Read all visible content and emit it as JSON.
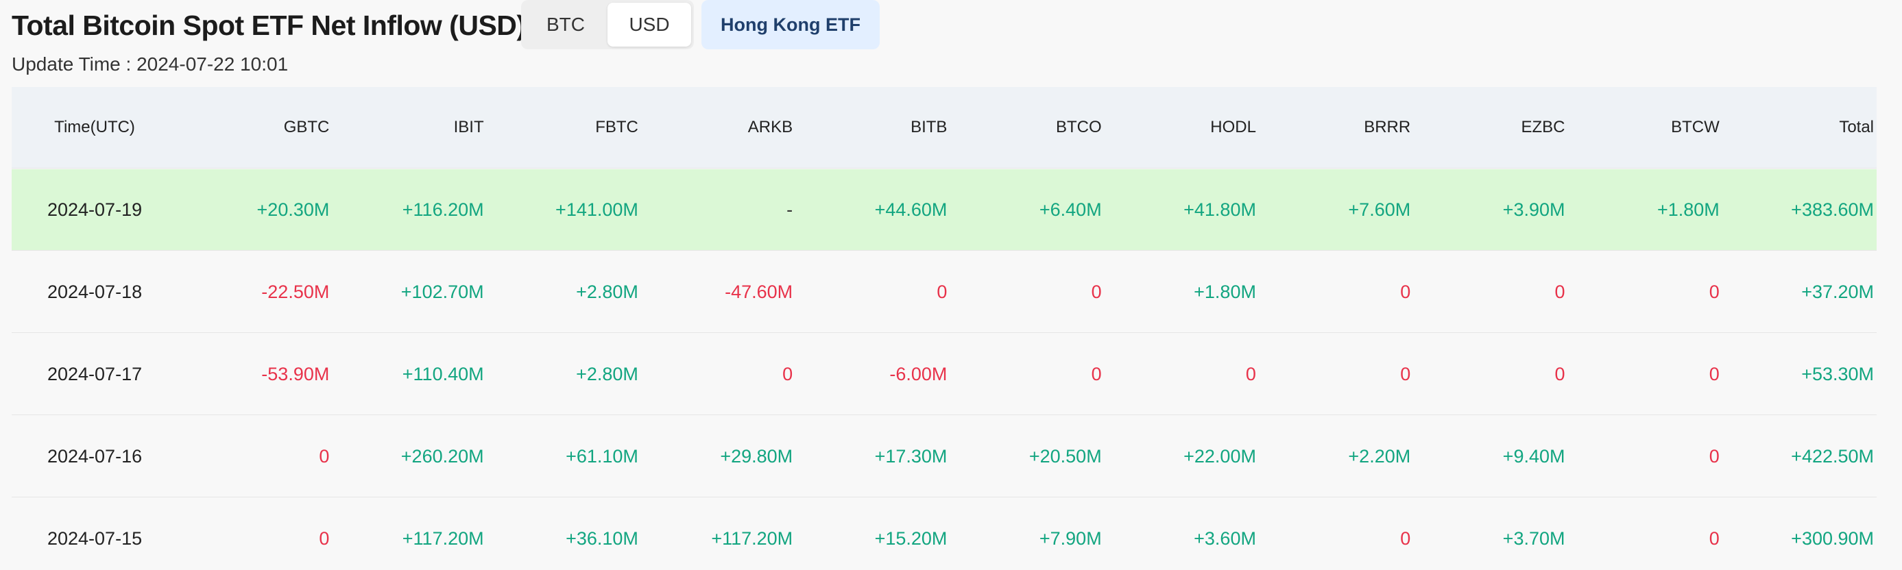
{
  "title": "Total Bitcoin Spot ETF Net Inflow (USD)",
  "unit_toggle": {
    "btc_label": "BTC",
    "usd_label": "USD",
    "selected": "USD"
  },
  "hk_button_label": "Hong Kong ETF",
  "update_time": "Update Time : 2024-07-22 10:01",
  "colors": {
    "positive": "#12a580",
    "negative": "#e8324a",
    "highlight_row": "#dbf8d6",
    "header_row": "#eef2f6",
    "hk_button_bg": "#e3efff"
  },
  "table": {
    "headers": [
      "Time(UTC)",
      "GBTC",
      "IBIT",
      "FBTC",
      "ARKB",
      "BITB",
      "BTCO",
      "HODL",
      "BRRR",
      "EZBC",
      "BTCW",
      "Total"
    ],
    "rows": [
      {
        "cells": [
          "2024-07-19",
          "+20.30M",
          "+116.20M",
          "+141.00M",
          "-",
          "+44.60M",
          "+6.40M",
          "+41.80M",
          "+7.60M",
          "+3.90M",
          "+1.80M",
          "+383.60M"
        ]
      },
      {
        "cells": [
          "2024-07-18",
          "-22.50M",
          "+102.70M",
          "+2.80M",
          "-47.60M",
          "0",
          "0",
          "+1.80M",
          "0",
          "0",
          "0",
          "+37.20M"
        ]
      },
      {
        "cells": [
          "2024-07-17",
          "-53.90M",
          "+110.40M",
          "+2.80M",
          "0",
          "-6.00M",
          "0",
          "0",
          "0",
          "0",
          "0",
          "+53.30M"
        ]
      },
      {
        "cells": [
          "2024-07-16",
          "0",
          "+260.20M",
          "+61.10M",
          "+29.80M",
          "+17.30M",
          "+20.50M",
          "+22.00M",
          "+2.20M",
          "+9.40M",
          "0",
          "+422.50M"
        ]
      },
      {
        "cells": [
          "2024-07-15",
          "0",
          "+117.20M",
          "+36.10M",
          "+117.20M",
          "+15.20M",
          "+7.90M",
          "+3.60M",
          "0",
          "+3.70M",
          "0",
          "+300.90M"
        ]
      }
    ]
  }
}
